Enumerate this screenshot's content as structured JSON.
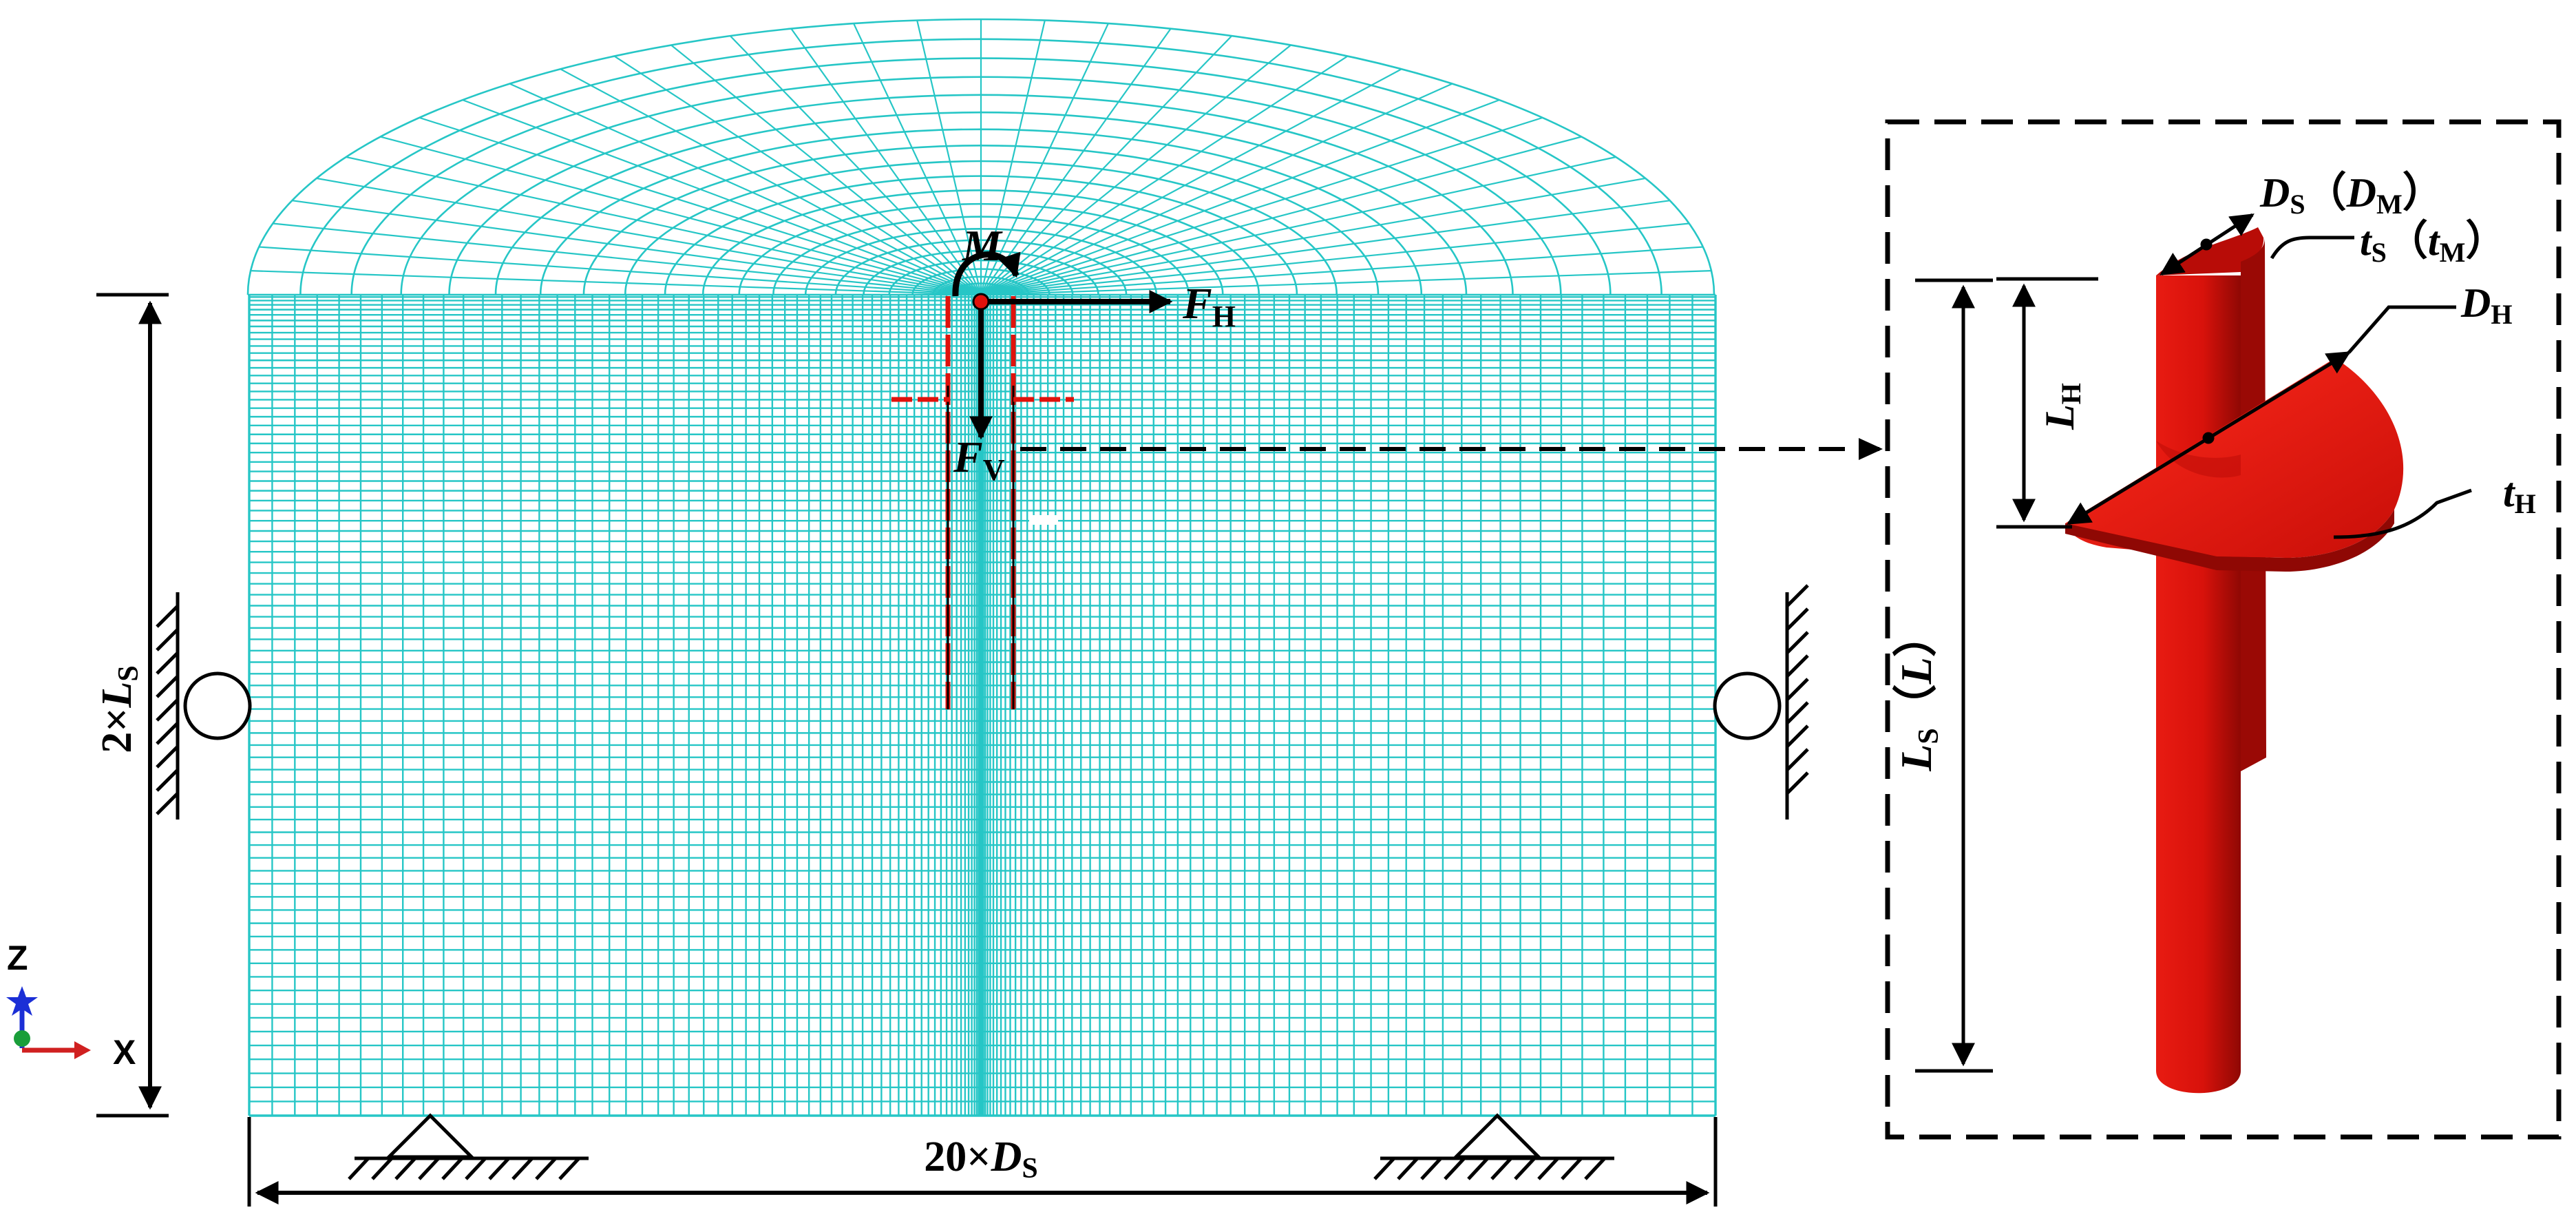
{
  "colors": {
    "mesh": "#26c6c6",
    "pile": "#e0120c",
    "pile_dark": "#a30a06",
    "ink": "#000000",
    "axis_x": "#d02020",
    "axis_y": "#1a9e3a",
    "axis_z": "#1b2fd6"
  },
  "labels": {
    "moment": "M",
    "horizontal_force": {
      "base": "F",
      "sub": "H"
    },
    "vertical_force": {
      "base": "F",
      "sub": "V"
    },
    "soil_depth": {
      "prefix": "2×",
      "base": "L",
      "sub": "S"
    },
    "soil_width": {
      "prefix": "20×",
      "base": "D",
      "sub": "S"
    },
    "axis_z": "Z",
    "axis_x": "X"
  },
  "detail_labels": {
    "shaft_diameter": {
      "base": "D",
      "sub": "S",
      "alt_base": "D",
      "alt_sub": "M"
    },
    "shaft_thickness": {
      "base": "t",
      "sub": "S",
      "alt_base": "t",
      "alt_sub": "M"
    },
    "helix_diameter": {
      "base": "D",
      "sub": "H"
    },
    "helix_depth": {
      "base": "L",
      "sub": "H"
    },
    "helix_thickness": {
      "base": "t",
      "sub": "H"
    },
    "shaft_length": {
      "base": "L",
      "sub": "S",
      "alt_base": "L"
    }
  },
  "icons": [
    "roller-support-icon",
    "pin-support-icon",
    "axis-triad-icon"
  ]
}
